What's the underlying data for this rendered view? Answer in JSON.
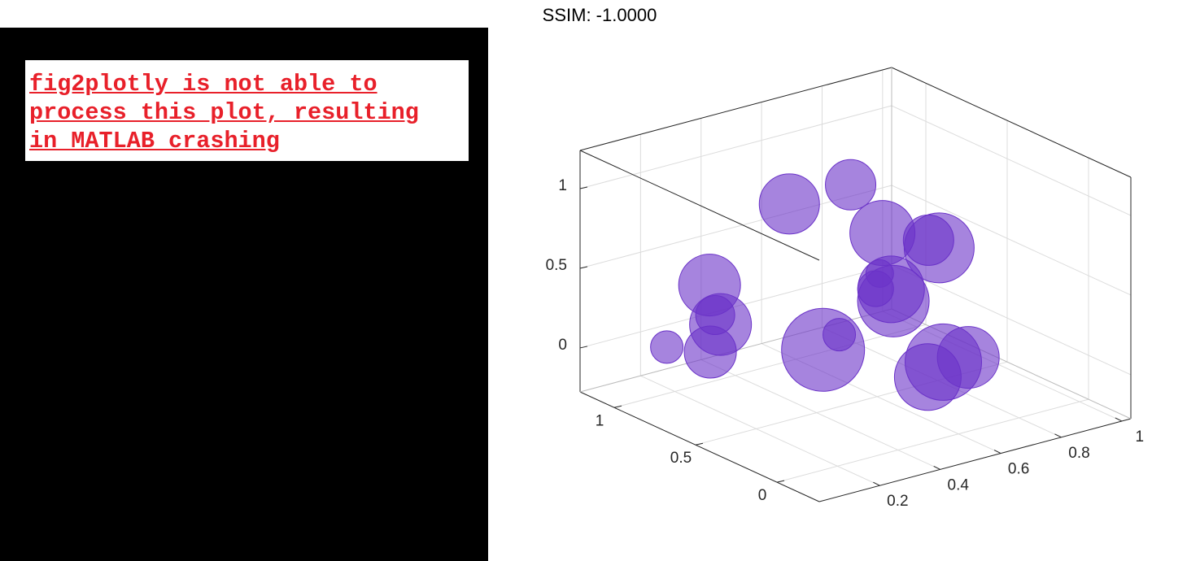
{
  "message": {
    "lines": [
      "fig2plotly is not able to",
      "process this plot, resulting",
      "in MATLAB crashing"
    ]
  },
  "chart_data": {
    "type": "bubble3d",
    "title": "SSIM: -1.0000",
    "x": [
      0.12,
      0.21,
      0.19,
      0.28,
      0.1,
      0.31,
      0.62,
      0.51,
      0.26,
      0.69,
      0.6,
      0.7,
      0.38,
      0.77,
      0.59,
      0.77,
      0.55,
      0.66,
      0.74
    ],
    "y": [
      0.9,
      0.8,
      0.7,
      0.9,
      0.6,
      0.5,
      0.7,
      0.3,
      0.2,
      0.9,
      0.4,
      0.6,
      0.1,
      0.8,
      0.1,
      0.5,
      0.0,
      0.3,
      0.2
    ],
    "z": [
      0.09,
      0.06,
      0.29,
      0.21,
      0.63,
      1.08,
      0.95,
      0.89,
      0.33,
      -0.12,
      0.37,
      0.3,
      0.7,
      0.27,
      0.85,
      0.62,
      0.2,
      -0.09,
      0.04
    ],
    "sizes": [
      20,
      32,
      38,
      24,
      38,
      37,
      31,
      40,
      51,
      20,
      44,
      41,
      22,
      17,
      43,
      31,
      47,
      41,
      38
    ],
    "color": "#6a32c8",
    "alpha": 0.6,
    "xlim": [
      0,
      1.03
    ],
    "ylim": [
      -0.26,
      1.21
    ],
    "zlim": [
      -0.276,
      1.24
    ],
    "xticks": [
      0.2,
      0.4,
      0.6,
      0.8,
      1
    ],
    "yticks": [
      0,
      0.5,
      1
    ],
    "zticks": [
      0,
      0.5,
      1
    ],
    "grid": true
  }
}
